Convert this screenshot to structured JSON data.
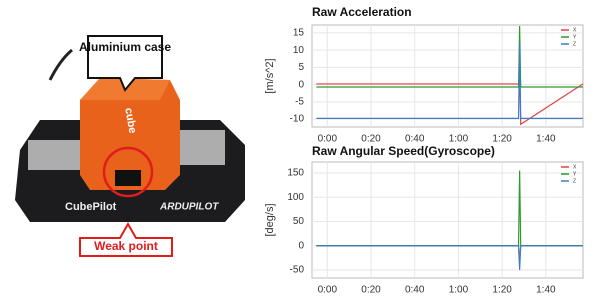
{
  "photo": {
    "callouts": [
      "Aluminium case",
      "Weak point"
    ],
    "device_labels": [
      "cube",
      "CubePilot",
      "ARDUPILOT"
    ]
  },
  "chart_data": [
    {
      "type": "line",
      "title": "Raw Acceleration",
      "y_label": "[m/s^2]",
      "x": [
        -5,
        87.5,
        88,
        88.5,
        117
      ],
      "series": [
        {
          "name": "X",
          "color": "#e0404a",
          "values": [
            0.2,
            0.2,
            3,
            -11.5,
            0.2
          ]
        },
        {
          "name": "Y",
          "color": "#2e9a2e",
          "values": [
            -0.7,
            -0.7,
            17,
            -0.7,
            -0.7
          ]
        },
        {
          "name": "Z",
          "color": "#3a7fc1",
          "values": [
            -9.8,
            -9.8,
            12,
            -9.8,
            -9.8
          ]
        }
      ],
      "xlim": [
        -7,
        117
      ],
      "xticks": [
        {
          "value": 0,
          "label": "0:00"
        },
        {
          "value": 20,
          "label": "0:20"
        },
        {
          "value": 40,
          "label": "0:40"
        },
        {
          "value": 60,
          "label": "1:00"
        },
        {
          "value": 80,
          "label": "1:20"
        },
        {
          "value": 100,
          "label": "1:40"
        }
      ],
      "ylim": [
        -12.3,
        17.3
      ],
      "yticks": [
        15,
        10,
        5,
        0,
        -5,
        -10
      ],
      "grid": true,
      "legend": "top-right"
    },
    {
      "type": "line",
      "title": "Raw Angular Speed(Gyroscope)",
      "y_label": "[deg/s]",
      "x": [
        -5,
        87.5,
        88,
        88.5,
        117
      ],
      "series": [
        {
          "name": "X",
          "color": "#e0404a",
          "values": [
            0,
            0,
            -35,
            0,
            0
          ]
        },
        {
          "name": "Y",
          "color": "#2e9a2e",
          "values": [
            0,
            0,
            155,
            0,
            0
          ]
        },
        {
          "name": "Z",
          "color": "#3a7fc1",
          "values": [
            0,
            0,
            -50,
            0,
            0
          ]
        }
      ],
      "xlim": [
        -7,
        117
      ],
      "xticks": [
        {
          "value": 0,
          "label": "0:00"
        },
        {
          "value": 20,
          "label": "0:20"
        },
        {
          "value": 40,
          "label": "0:40"
        },
        {
          "value": 60,
          "label": "1:00"
        },
        {
          "value": 80,
          "label": "1:20"
        },
        {
          "value": 100,
          "label": "1:40"
        }
      ],
      "ylim": [
        -66.5,
        172.7
      ],
      "yticks": [
        150,
        100,
        50,
        0,
        -50
      ],
      "grid": true,
      "legend": "top-right"
    }
  ]
}
